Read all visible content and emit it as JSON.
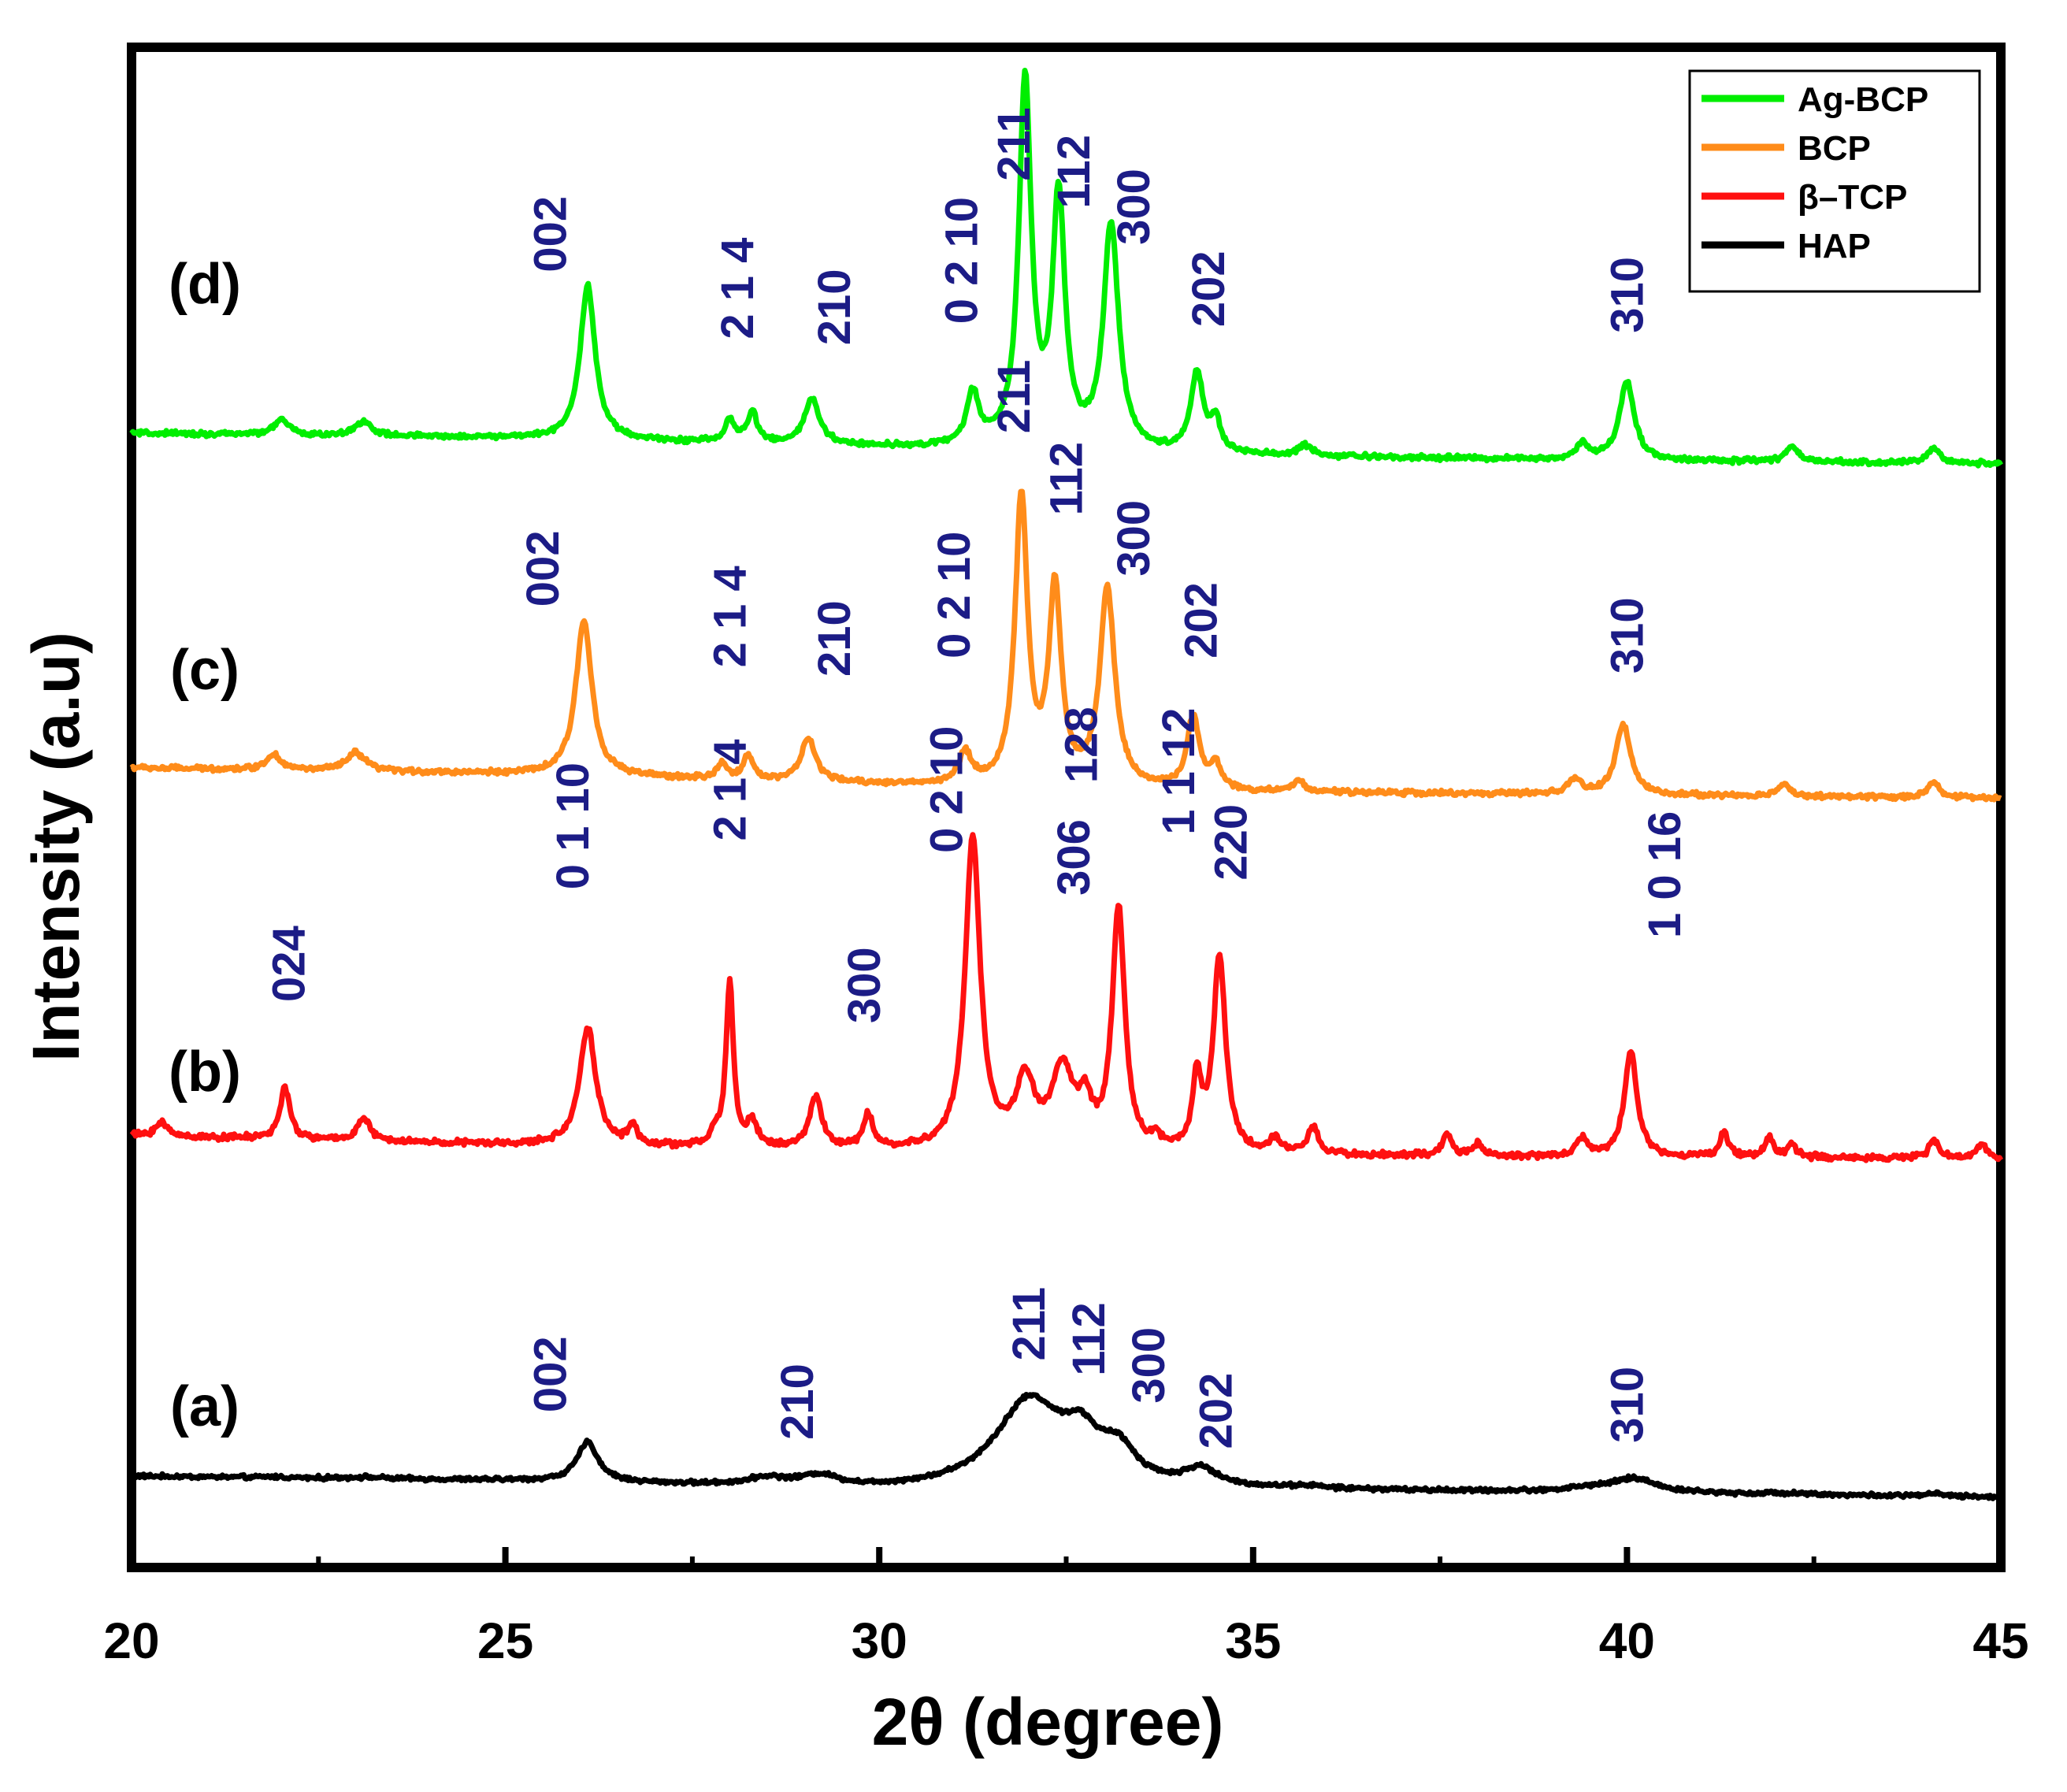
{
  "chart_data": {
    "type": "line",
    "xlabel": "2θ (degree)",
    "ylabel": "Intensity (a.u)",
    "xlim": [
      20,
      45
    ],
    "xticks": [
      "20",
      "25",
      "30",
      "35",
      "40",
      "45"
    ],
    "grid": false,
    "legend_position": "top-right",
    "legend": [
      {
        "name": "Ag-BCP",
        "color": "#00ee00"
      },
      {
        "name": "BCP",
        "color": "#ff8c1a"
      },
      {
        "name": "β–TCP",
        "color": "#ff1010"
      },
      {
        "name": "HAP",
        "color": "#000000"
      }
    ],
    "series": [
      {
        "key": "hap",
        "name": "HAP",
        "tag": "(a)",
        "color": "#000000",
        "baseline": [
          [
            20,
            3.0
          ],
          [
            25,
            2.85
          ],
          [
            30,
            2.55
          ],
          [
            35,
            2.55
          ],
          [
            40,
            2.45
          ],
          [
            45,
            2.3
          ]
        ],
        "peaks": [
          [
            21.9,
            0.03,
            0.15
          ],
          [
            23.1,
            0.05,
            0.3
          ],
          [
            26.1,
            1.3,
            0.17
          ],
          [
            28.5,
            0.25,
            0.3
          ],
          [
            29.2,
            0.35,
            0.3
          ],
          [
            32.0,
            2.85,
            0.55
          ],
          [
            32.7,
            1.25,
            0.3
          ],
          [
            33.2,
            1.0,
            0.28
          ],
          [
            34.3,
            0.55,
            0.25
          ],
          [
            35.7,
            0.08,
            0.25
          ],
          [
            39.5,
            0.12,
            0.35
          ],
          [
            40.1,
            0.45,
            0.35
          ],
          [
            42.2,
            0.05,
            0.3
          ],
          [
            44.1,
            0.08,
            0.2
          ]
        ],
        "noise": 0.04,
        "labels": [
          {
            "text": "002",
            "x": 25.6,
            "y": 5.1
          },
          {
            "text": "210",
            "x": 28.9,
            "y": 4.2
          },
          {
            "text": "211",
            "x": 32.0,
            "y": 6.8
          },
          {
            "text": "112",
            "x": 32.8,
            "y": 6.3
          },
          {
            "text": "300",
            "x": 33.6,
            "y": 5.4
          },
          {
            "text": "202",
            "x": 34.5,
            "y": 3.9
          },
          {
            "text": "310",
            "x": 40.0,
            "y": 4.1
          }
        ]
      },
      {
        "key": "tcp",
        "name": "β–TCP",
        "tag": "(b)",
        "color": "#ff1010",
        "baseline": [
          [
            20,
            14.2
          ],
          [
            25,
            13.9
          ],
          [
            30,
            13.7
          ],
          [
            35,
            13.55
          ],
          [
            40,
            13.5
          ],
          [
            45,
            13.45
          ]
        ],
        "peaks": [
          [
            20.4,
            0.45,
            0.1
          ],
          [
            22.05,
            1.7,
            0.08
          ],
          [
            23.1,
            0.75,
            0.1
          ],
          [
            26.1,
            3.9,
            0.13
          ],
          [
            26.7,
            0.6,
            0.07
          ],
          [
            27.8,
            0.4,
            0.06
          ],
          [
            28.0,
            5.4,
            0.06
          ],
          [
            28.3,
            0.8,
            0.08
          ],
          [
            29.15,
            1.7,
            0.1
          ],
          [
            29.85,
            1.1,
            0.08
          ],
          [
            31.25,
            10.3,
            0.12
          ],
          [
            31.95,
            2.2,
            0.15
          ],
          [
            32.45,
            2.6,
            0.17
          ],
          [
            32.75,
            1.3,
            0.1
          ],
          [
            33.2,
            7.9,
            0.1
          ],
          [
            33.7,
            0.3,
            0.08
          ],
          [
            34.25,
            2.3,
            0.07
          ],
          [
            34.55,
            6.4,
            0.1
          ],
          [
            35.3,
            0.5,
            0.08
          ],
          [
            35.8,
            0.9,
            0.08
          ],
          [
            37.6,
            0.7,
            0.07
          ],
          [
            38.0,
            0.4,
            0.07
          ],
          [
            39.4,
            0.6,
            0.08
          ],
          [
            40.05,
            3.5,
            0.1
          ],
          [
            41.3,
            0.8,
            0.07
          ],
          [
            41.9,
            0.65,
            0.07
          ],
          [
            42.2,
            0.4,
            0.07
          ],
          [
            44.1,
            0.6,
            0.07
          ],
          [
            44.75,
            0.5,
            0.07
          ]
        ],
        "noise": 0.06,
        "labels": [
          {
            "text": "024",
            "x": 22.1,
            "y": 18.6
          },
          {
            "text": "0 1 10",
            "x": 25.9,
            "y": 22.3
          },
          {
            "text": "2 1 4",
            "x": 28.0,
            "y": 23.9
          },
          {
            "text": "300",
            "x": 29.8,
            "y": 17.9
          },
          {
            "text": "0 2 10",
            "x": 30.9,
            "y": 23.5
          },
          {
            "text": "128",
            "x": 32.7,
            "y": 25.8
          },
          {
            "text": "306",
            "x": 32.6,
            "y": 22.1
          },
          {
            "text": "1 1 12",
            "x": 34.0,
            "y": 24.1
          },
          {
            "text": "220",
            "x": 34.7,
            "y": 22.6
          },
          {
            "text": "1 0 16",
            "x": 40.5,
            "y": 20.7
          }
        ]
      },
      {
        "key": "bcp",
        "name": "BCP",
        "tag": "(c)",
        "color": "#ff8c1a",
        "baseline": [
          [
            20,
            26.3
          ],
          [
            25,
            26.1
          ],
          [
            30,
            25.75
          ],
          [
            35,
            25.5
          ],
          [
            40,
            25.4
          ],
          [
            45,
            25.3
          ]
        ],
        "peaks": [
          [
            21.9,
            0.5,
            0.12
          ],
          [
            23.0,
            0.6,
            0.15
          ],
          [
            26.05,
            5.1,
            0.13
          ],
          [
            27.9,
            0.5,
            0.08
          ],
          [
            28.25,
            0.8,
            0.08
          ],
          [
            29.05,
            1.4,
            0.12
          ],
          [
            31.15,
            1.0,
            0.1
          ],
          [
            31.9,
            9.4,
            0.1
          ],
          [
            32.35,
            6.4,
            0.1
          ],
          [
            33.05,
            6.5,
            0.12
          ],
          [
            34.2,
            2.4,
            0.1
          ],
          [
            34.5,
            0.8,
            0.08
          ],
          [
            35.6,
            0.35,
            0.1
          ],
          [
            39.3,
            0.5,
            0.1
          ],
          [
            39.95,
            2.3,
            0.12
          ],
          [
            42.1,
            0.4,
            0.1
          ],
          [
            44.1,
            0.5,
            0.1
          ]
        ],
        "noise": 0.05,
        "labels": [
          {
            "text": "002",
            "x": 25.5,
            "y": 31.6
          },
          {
            "text": "2 1 4",
            "x": 28.0,
            "y": 29.6
          },
          {
            "text": "210",
            "x": 29.4,
            "y": 29.3
          },
          {
            "text": "0 2 10",
            "x": 31.0,
            "y": 29.9
          },
          {
            "text": "211",
            "x": 31.8,
            "y": 37.3
          },
          {
            "text": "112",
            "x": 32.5,
            "y": 34.6
          },
          {
            "text": "300",
            "x": 33.4,
            "y": 32.6
          },
          {
            "text": "202",
            "x": 34.3,
            "y": 29.9
          },
          {
            "text": "310",
            "x": 40.0,
            "y": 29.4
          }
        ]
      },
      {
        "key": "agbcp",
        "name": "Ag-BCP",
        "tag": "(d)",
        "color": "#00ee00",
        "baseline": [
          [
            20,
            37.3
          ],
          [
            25,
            37.15
          ],
          [
            30,
            36.85
          ],
          [
            35,
            36.55
          ],
          [
            40,
            36.4
          ],
          [
            45,
            36.3
          ]
        ],
        "peaks": [
          [
            22.0,
            0.5,
            0.12
          ],
          [
            23.1,
            0.5,
            0.12
          ],
          [
            26.1,
            5.1,
            0.12
          ],
          [
            28.0,
            0.7,
            0.08
          ],
          [
            28.3,
            1.0,
            0.08
          ],
          [
            29.1,
            1.5,
            0.12
          ],
          [
            31.25,
            1.7,
            0.1
          ],
          [
            31.95,
            12.0,
            0.1
          ],
          [
            32.4,
            8.1,
            0.1
          ],
          [
            33.1,
            7.4,
            0.12
          ],
          [
            34.25,
            2.6,
            0.1
          ],
          [
            34.5,
            1.0,
            0.08
          ],
          [
            35.7,
            0.35,
            0.1
          ],
          [
            39.4,
            0.5,
            0.1
          ],
          [
            40.0,
            2.6,
            0.12
          ],
          [
            42.2,
            0.5,
            0.1
          ],
          [
            44.1,
            0.5,
            0.1
          ]
        ],
        "noise": 0.05,
        "labels": [
          {
            "text": "002",
            "x": 25.6,
            "y": 42.6
          },
          {
            "text": "2 1 4",
            "x": 28.1,
            "y": 40.4
          },
          {
            "text": "210",
            "x": 29.4,
            "y": 40.2
          },
          {
            "text": "0 2 10",
            "x": 31.1,
            "y": 40.9
          },
          {
            "text": "211",
            "x": 31.8,
            "y": 45.6
          },
          {
            "text": "112",
            "x": 32.6,
            "y": 44.7
          },
          {
            "text": "300",
            "x": 33.4,
            "y": 43.5
          },
          {
            "text": "202",
            "x": 34.4,
            "y": 40.8
          },
          {
            "text": "310",
            "x": 40.0,
            "y": 40.6
          }
        ]
      }
    ]
  }
}
